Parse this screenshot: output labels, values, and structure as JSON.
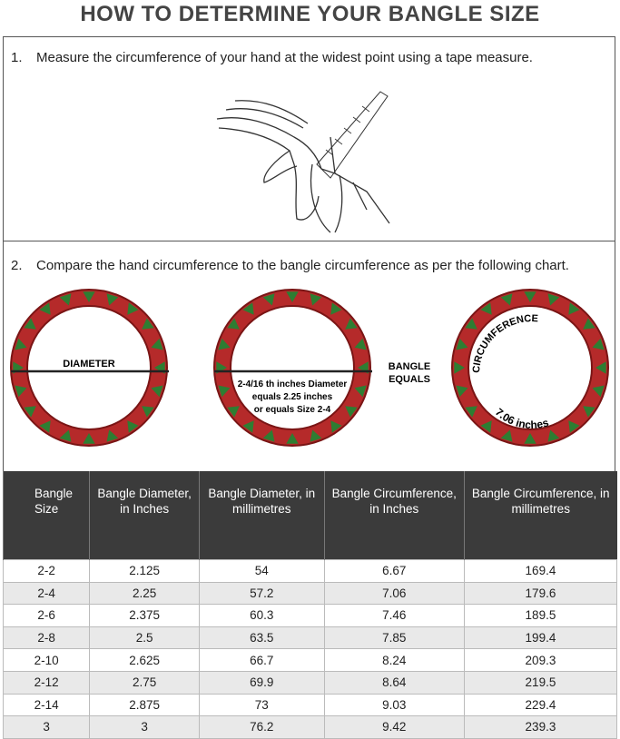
{
  "title": "HOW TO DETERMINE YOUR BANGLE SIZE",
  "steps": [
    {
      "number": "1.",
      "text": "Measure the circumference of your hand at the widest point using a tape measure."
    },
    {
      "number": "2.",
      "text": "Compare the hand circumference to the bangle circumference as per the following chart."
    }
  ],
  "diagram": {
    "diameter": "DIAMETER",
    "note": [
      "2-4/16 th inches Diameter",
      "equals 2.25 inches",
      "or equals Size 2-4"
    ],
    "equals": [
      "BANGLE",
      "EQUALS"
    ],
    "circumference": "CIRCUMFERENCE",
    "circumference_value": "7.06 inches"
  },
  "table": {
    "headers": [
      "Bangle Size",
      "Bangle Diameter, in Inches",
      "Bangle Diameter, in millimetres",
      "Bangle Circumference, in Inches",
      "Bangle Circumference, in millimetres"
    ],
    "rows": [
      [
        "2-2",
        "2.125",
        "54",
        "6.67",
        "169.4"
      ],
      [
        "2-4",
        "2.25",
        "57.2",
        "7.06",
        "179.6"
      ],
      [
        "2-6",
        "2.375",
        "60.3",
        "7.46",
        "189.5"
      ],
      [
        "2-8",
        "2.5",
        "63.5",
        "7.85",
        "199.4"
      ],
      [
        "2-10",
        "2.625",
        "66.7",
        "8.24",
        "209.3"
      ],
      [
        "2-12",
        "2.75",
        "69.9",
        "8.64",
        "219.5"
      ],
      [
        "2-14",
        "2.875",
        "73",
        "9.03",
        "229.4"
      ],
      [
        "3",
        "3",
        "76.2",
        "9.42",
        "239.3"
      ]
    ]
  }
}
